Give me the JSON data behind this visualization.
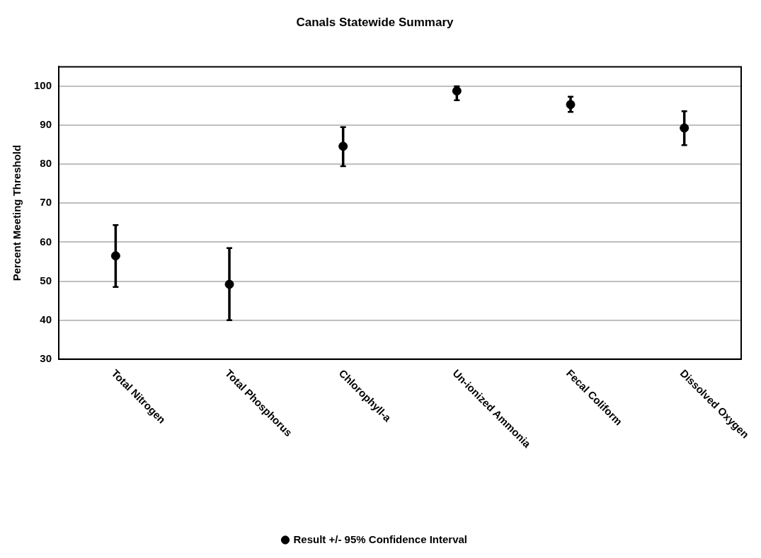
{
  "chart_data": {
    "type": "scatter",
    "title": "Canals Statewide Summary",
    "ylabel": "Percent Meeting Threshold",
    "categories": [
      "Total Nitrogen",
      "Total Phosphorus",
      "Chlorophyll-a",
      "Un-ionized Ammonia",
      "Fecal Coliform",
      "Dissolved Oxygen"
    ],
    "series": [
      {
        "name": "Result +/- 95% Confidence Interval",
        "color": "#000000",
        "values": [
          56.5,
          49.2,
          84.6,
          98.8,
          95.3,
          89.3
        ],
        "errors": [
          [
            48.5,
            64.4
          ],
          [
            40,
            58.5
          ],
          [
            79.5,
            89.5
          ],
          [
            96.4,
            100
          ],
          [
            93.4,
            97.3
          ],
          [
            84.9,
            93.6
          ]
        ]
      }
    ],
    "ylim": [
      30,
      105
    ],
    "yticks": [
      30,
      40,
      50,
      60,
      70,
      80,
      90,
      100
    ],
    "grid": "y",
    "legend": "bottom",
    "marker": "circle"
  }
}
